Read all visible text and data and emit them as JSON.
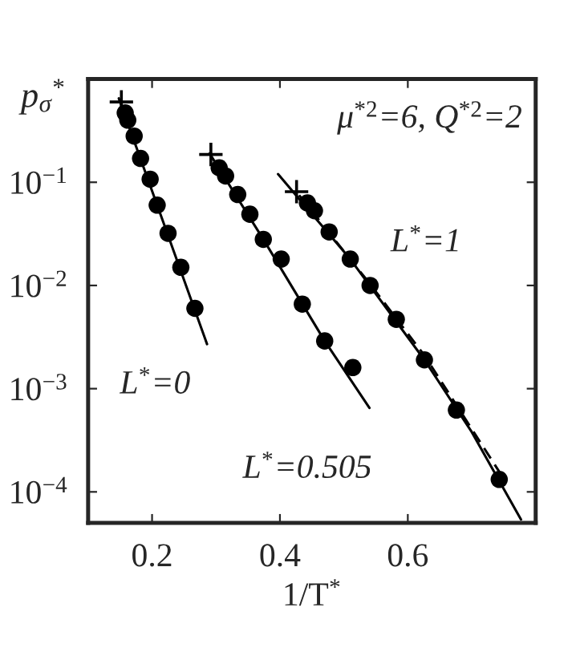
{
  "chart_data": {
    "type": "scatter",
    "xlabel": "1/T$^{*}$",
    "ylabel": "p$_{σ}$$^{*}$",
    "log": "y",
    "xlim": [
      0.1,
      0.8
    ],
    "ylim": [
      5e-05,
      1
    ],
    "xticks": [
      0.2,
      0.4,
      0.6
    ],
    "yticks": [
      {
        "value": 0.1,
        "label": "10$^{−1}$"
      },
      {
        "value": 0.01,
        "label": "10$^{−2}$"
      },
      {
        "value": 0.001,
        "label": "10$^{−3}$"
      },
      {
        "value": 0.0001,
        "label": "10$^{−4}$"
      }
    ],
    "grid": false,
    "annotations": [
      "μ$^{*2}$=6, Q$^{*2}$=2",
      "L$^{*}$=0",
      "L$^{*}$=0.505",
      "L$^{*}$=1"
    ],
    "series": [
      {
        "type": "line",
        "line_style": "solid",
        "marker": "none",
        "color": "#000000",
        "x": [
          0.148,
          0.217,
          0.286
        ],
        "values": [
          0.65,
          0.042,
          0.0027
        ]
      },
      {
        "type": "line",
        "line_style": "solid",
        "marker": "none",
        "color": "#000000",
        "x": [
          0.29,
          0.374,
          0.47,
          0.54
        ],
        "values": [
          0.19,
          0.028,
          0.0029,
          0.00065
        ]
      },
      {
        "type": "line",
        "line_style": "solid",
        "marker": "none",
        "color": "#000000",
        "x": [
          0.397,
          0.51,
          0.626,
          0.7,
          0.777
        ],
        "values": [
          0.12,
          0.018,
          0.0019,
          0.00038,
          5.4e-05
        ]
      },
      {
        "type": "line",
        "line_style": "dashed",
        "marker": "none",
        "color": "#000000",
        "x": [
          0.43,
          0.54,
          0.626,
          0.745
        ],
        "values": [
          0.075,
          0.0105,
          0.0021,
          0.00015
        ]
      },
      {
        "marker": "circle",
        "color": "#000000",
        "x": [
          0.158,
          0.162,
          0.172,
          0.182,
          0.197,
          0.208,
          0.225,
          0.245,
          0.267
        ],
        "values": [
          0.47,
          0.4,
          0.28,
          0.17,
          0.107,
          0.06,
          0.032,
          0.015,
          0.006
        ]
      },
      {
        "marker": "circle",
        "color": "#000000",
        "x": [
          0.305,
          0.315,
          0.334,
          0.353,
          0.374,
          0.402,
          0.435,
          0.47,
          0.514
        ],
        "values": [
          0.138,
          0.115,
          0.076,
          0.049,
          0.028,
          0.018,
          0.0066,
          0.0029,
          0.0016
        ]
      },
      {
        "marker": "circle",
        "color": "#000000",
        "x": [
          0.443,
          0.454,
          0.477,
          0.51,
          0.541,
          0.582,
          0.626,
          0.676,
          0.743
        ],
        "values": [
          0.063,
          0.053,
          0.033,
          0.018,
          0.01,
          0.0047,
          0.0019,
          0.00062,
          0.000132
        ]
      },
      {
        "marker": "cross",
        "color": "#000000",
        "x": [
          0.152,
          0.292,
          0.426
        ],
        "values": [
          0.6,
          0.186,
          0.081
        ]
      }
    ]
  }
}
